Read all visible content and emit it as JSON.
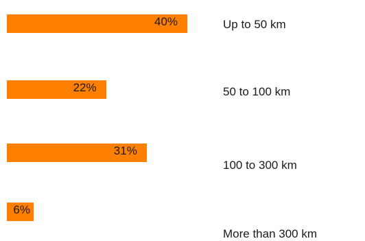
{
  "chart_data": {
    "type": "bar",
    "orientation": "horizontal",
    "categories": [
      "Up to 50 km",
      "50 to 100 km",
      "100 to 300 km",
      "More than 300 km"
    ],
    "values": [
      40,
      22,
      31,
      6
    ],
    "data_labels": [
      "40%",
      "22%",
      "31%",
      "6%"
    ],
    "value_unit": "%",
    "xlim": [
      0,
      40
    ],
    "grid": false,
    "legend": "none",
    "bar_color": "#ff8000"
  }
}
